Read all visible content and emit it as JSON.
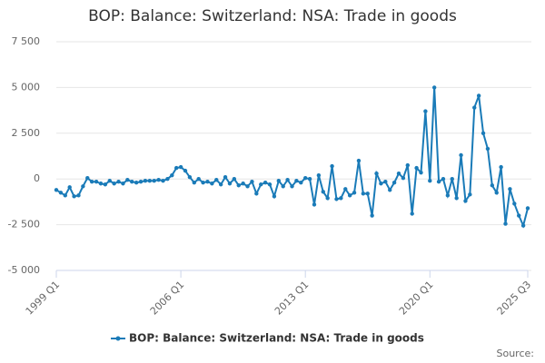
{
  "chart_data": {
    "type": "line",
    "title": "BOP: Balance: Switzerland: NSA: Trade in goods",
    "source": "Source:",
    "categories": [
      "1999 Q1",
      null,
      null,
      null,
      null,
      null,
      null,
      null,
      null,
      null,
      null,
      null,
      null,
      null,
      null,
      null,
      null,
      null,
      null,
      null,
      null,
      null,
      null,
      null,
      null,
      null,
      null,
      null,
      "2006 Q1",
      null,
      null,
      null,
      null,
      null,
      null,
      null,
      null,
      null,
      null,
      null,
      null,
      null,
      null,
      null,
      null,
      null,
      null,
      null,
      null,
      null,
      null,
      null,
      null,
      null,
      null,
      null,
      "2013 Q1",
      null,
      null,
      null,
      null,
      null,
      null,
      null,
      null,
      null,
      null,
      null,
      null,
      null,
      null,
      null,
      null,
      null,
      null,
      null,
      null,
      null,
      null,
      null,
      null,
      null,
      null,
      null,
      "2020 Q1",
      null,
      null,
      null,
      null,
      null,
      null,
      null,
      null,
      null,
      null,
      null,
      null,
      null,
      null,
      null,
      null,
      null,
      null,
      null,
      null,
      null,
      "2025 Q3"
    ],
    "series": [
      {
        "name": "BOP: Balance: Switzerland: NSA: Trade in goods",
        "color": "#1a7bb8",
        "values": [
          -600,
          -750,
          -900,
          -450,
          -950,
          -900,
          -400,
          50,
          -150,
          -150,
          -250,
          -300,
          -100,
          -250,
          -150,
          -250,
          -50,
          -150,
          -200,
          -150,
          -100,
          -100,
          -100,
          -50,
          -100,
          0,
          200,
          600,
          650,
          450,
          100,
          -200,
          0,
          -200,
          -150,
          -250,
          -50,
          -300,
          100,
          -250,
          0,
          -350,
          -250,
          -400,
          -150,
          -800,
          -300,
          -200,
          -300,
          -950,
          -100,
          -400,
          -50,
          -400,
          -100,
          -200,
          50,
          0,
          -1400,
          200,
          -700,
          -1050,
          700,
          -1100,
          -1050,
          -550,
          -900,
          -750,
          1000,
          -800,
          -800,
          -2000,
          300,
          -250,
          -150,
          -600,
          -200,
          300,
          50,
          750,
          -1900,
          600,
          350,
          3700,
          -100,
          5000,
          -150,
          0,
          -900,
          0,
          -1050,
          1300,
          -1200,
          -850,
          3900,
          4550,
          2500,
          1650,
          -350,
          -750,
          650,
          -2450,
          -550,
          -1350,
          -2000,
          -2550,
          -1600
        ]
      }
    ],
    "ylim": [
      -5000,
      7500
    ],
    "yticks": [
      {
        "value": -5000,
        "label": "-5 000"
      },
      {
        "value": -2500,
        "label": "-2 500"
      },
      0,
      {
        "value": 2500,
        "label": "2 500"
      },
      {
        "value": 5000,
        "label": "5 000"
      },
      {
        "value": 7500,
        "label": "7 500"
      }
    ],
    "grid": true
  }
}
